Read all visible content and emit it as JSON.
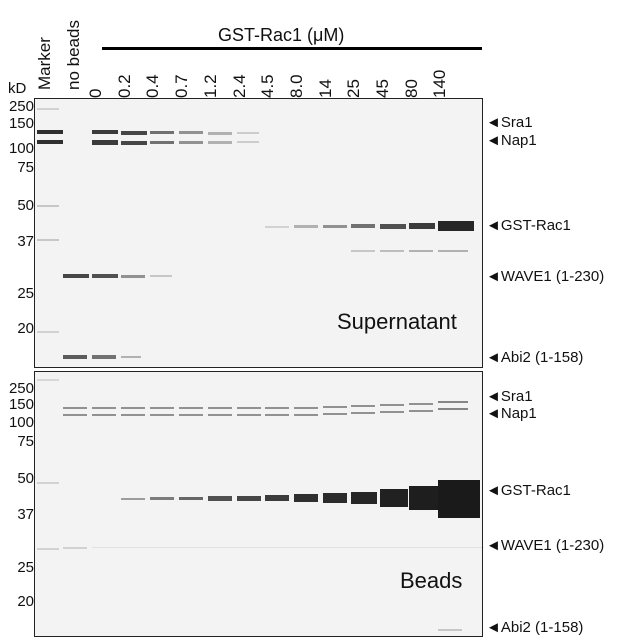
{
  "header": {
    "marker_label": "Marker",
    "no_beads_label": "no beads",
    "series_title": "GST-Rac1 (μM)",
    "concentrations": [
      "0",
      "0.2",
      "0.4",
      "0.7",
      "1.2",
      "2.4",
      "4.5",
      "8.0",
      "14",
      "25",
      "45",
      "80",
      "140"
    ]
  },
  "kd_label": "kD",
  "ladder": [
    "250",
    "150",
    "100",
    "75",
    "50",
    "37",
    "25",
    "20"
  ],
  "panels": {
    "supernatant": {
      "label": "Supernatant",
      "band_labels": [
        "Sra1",
        "Nap1",
        "GST-Rac1",
        "WAVE1 (1-230)",
        "Abi2 (1-158)"
      ]
    },
    "beads": {
      "label": "Beads",
      "band_labels": [
        "Sra1",
        "Nap1",
        "GST-Rac1",
        "WAVE1 (1-230)",
        "Abi2 (1-158)"
      ]
    }
  }
}
